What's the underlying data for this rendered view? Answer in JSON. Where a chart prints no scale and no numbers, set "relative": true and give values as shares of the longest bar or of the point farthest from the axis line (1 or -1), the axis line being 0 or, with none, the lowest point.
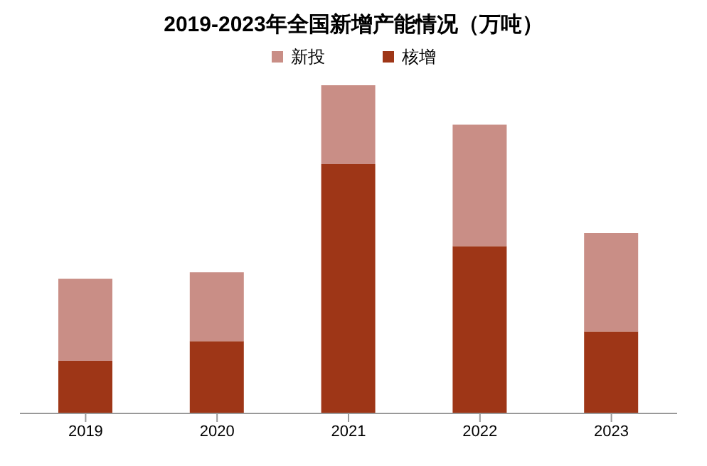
{
  "chart_data": {
    "type": "bar",
    "title": "2019-2023年全国新增产能情况（万吨）",
    "categories": [
      "2019",
      "2020",
      "2021",
      "2022",
      "2023"
    ],
    "stacked": true,
    "relative": true,
    "legend": "top",
    "grid": false,
    "series": [
      {
        "name": "核增",
        "color": "#9e3617",
        "values": [
          0.16,
          0.22,
          0.76,
          0.51,
          0.25
        ]
      },
      {
        "name": "新投",
        "color": "#c98e86",
        "values": [
          0.25,
          0.21,
          0.24,
          0.37,
          0.3
        ]
      }
    ]
  }
}
